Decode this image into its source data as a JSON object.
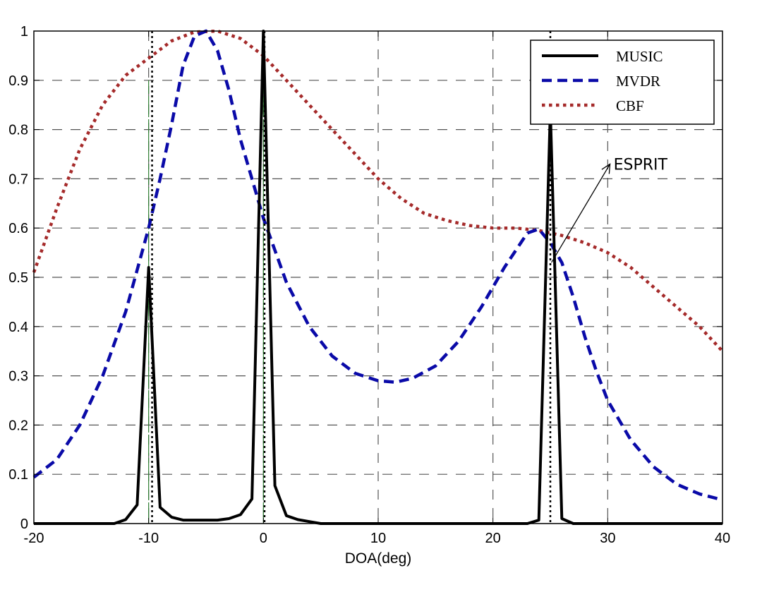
{
  "chart_data": {
    "type": "line",
    "title": "",
    "xlabel": "DOA(deg)",
    "ylabel": "",
    "xlim": [
      -20,
      40
    ],
    "ylim": [
      0,
      1
    ],
    "xticks": [
      -20,
      -10,
      0,
      10,
      20,
      30,
      40
    ],
    "xtick_labels": [
      "-20",
      "-10",
      "0",
      "10",
      "20",
      "30",
      "40"
    ],
    "yticks": [
      0,
      0.1,
      0.2,
      0.3,
      0.4,
      0.5,
      0.6,
      0.7,
      0.8,
      0.9,
      1
    ],
    "ytick_labels": [
      "0",
      "0.1",
      "0.2",
      "0.3",
      "0.4",
      "0.5",
      "0.6",
      "0.7",
      "0.8",
      "0.9",
      "1"
    ],
    "grid": true,
    "legend_position": "top-right",
    "series": [
      {
        "name": "MUSIC",
        "style": "solid",
        "color": "#000000",
        "x": [
          -20,
          -13,
          -12,
          -11,
          -10,
          -9,
          -8,
          -7,
          -6,
          -5,
          -4,
          -3,
          -2,
          -1,
          0,
          1,
          2,
          3,
          4,
          5,
          23,
          24,
          25,
          26,
          27,
          40
        ],
        "y": [
          0,
          0,
          0.008,
          0.038,
          0.52,
          0.033,
          0.013,
          0.007,
          0.007,
          0.007,
          0.007,
          0.01,
          0.018,
          0.05,
          1.0,
          0.077,
          0.016,
          0.008,
          0.004,
          0,
          0,
          0.007,
          0.84,
          0.01,
          0,
          0
        ]
      },
      {
        "name": "MVDR",
        "style": "dashed",
        "color": "#0a0aa8",
        "x": [
          -20,
          -18,
          -16,
          -14,
          -12,
          -10,
          -9,
          -8,
          -7,
          -6,
          -5,
          -4,
          -3,
          -2,
          -1,
          0,
          2,
          4,
          6,
          8,
          10,
          11.5,
          13,
          15,
          17,
          19,
          21,
          23,
          24,
          25,
          26,
          27,
          28,
          29,
          30,
          32,
          34,
          36,
          38,
          40
        ],
        "y": [
          0.094,
          0.13,
          0.2,
          0.3,
          0.43,
          0.6,
          0.7,
          0.81,
          0.93,
          0.99,
          1.0,
          0.96,
          0.88,
          0.78,
          0.7,
          0.62,
          0.49,
          0.4,
          0.34,
          0.305,
          0.29,
          0.287,
          0.295,
          0.32,
          0.37,
          0.44,
          0.52,
          0.59,
          0.598,
          0.57,
          0.53,
          0.46,
          0.38,
          0.31,
          0.25,
          0.17,
          0.115,
          0.08,
          0.06,
          0.048
        ]
      },
      {
        "name": "CBF",
        "style": "dotted",
        "color": "#a52a2a",
        "x": [
          -20,
          -18,
          -16,
          -14,
          -12,
          -10,
          -8,
          -6,
          -4,
          -2,
          0,
          2,
          4,
          6,
          8,
          10,
          12,
          14,
          16,
          18,
          20,
          22,
          24,
          26,
          28,
          30,
          32,
          34,
          36,
          38,
          40
        ],
        "y": [
          0.51,
          0.64,
          0.76,
          0.85,
          0.91,
          0.945,
          0.98,
          0.998,
          1.0,
          0.985,
          0.95,
          0.9,
          0.85,
          0.8,
          0.75,
          0.7,
          0.66,
          0.63,
          0.615,
          0.605,
          0.6,
          0.6,
          0.595,
          0.585,
          0.57,
          0.55,
          0.52,
          0.48,
          0.44,
          0.4,
          0.35
        ]
      }
    ],
    "esprit_markers": {
      "name": "ESPRIT",
      "style": "dotted-vertical",
      "color": "#000000",
      "x": [
        -9.7,
        0.1,
        25
      ]
    },
    "green_markers": {
      "color": "#2e7d32",
      "x": [
        -10,
        0
      ]
    },
    "annotations": [
      {
        "text": "ESPRIT",
        "x": 31,
        "y": 0.73,
        "arrow_from": [
          25.1,
          0.53
        ],
        "arrow_to": [
          30.2,
          0.73
        ]
      }
    ]
  }
}
